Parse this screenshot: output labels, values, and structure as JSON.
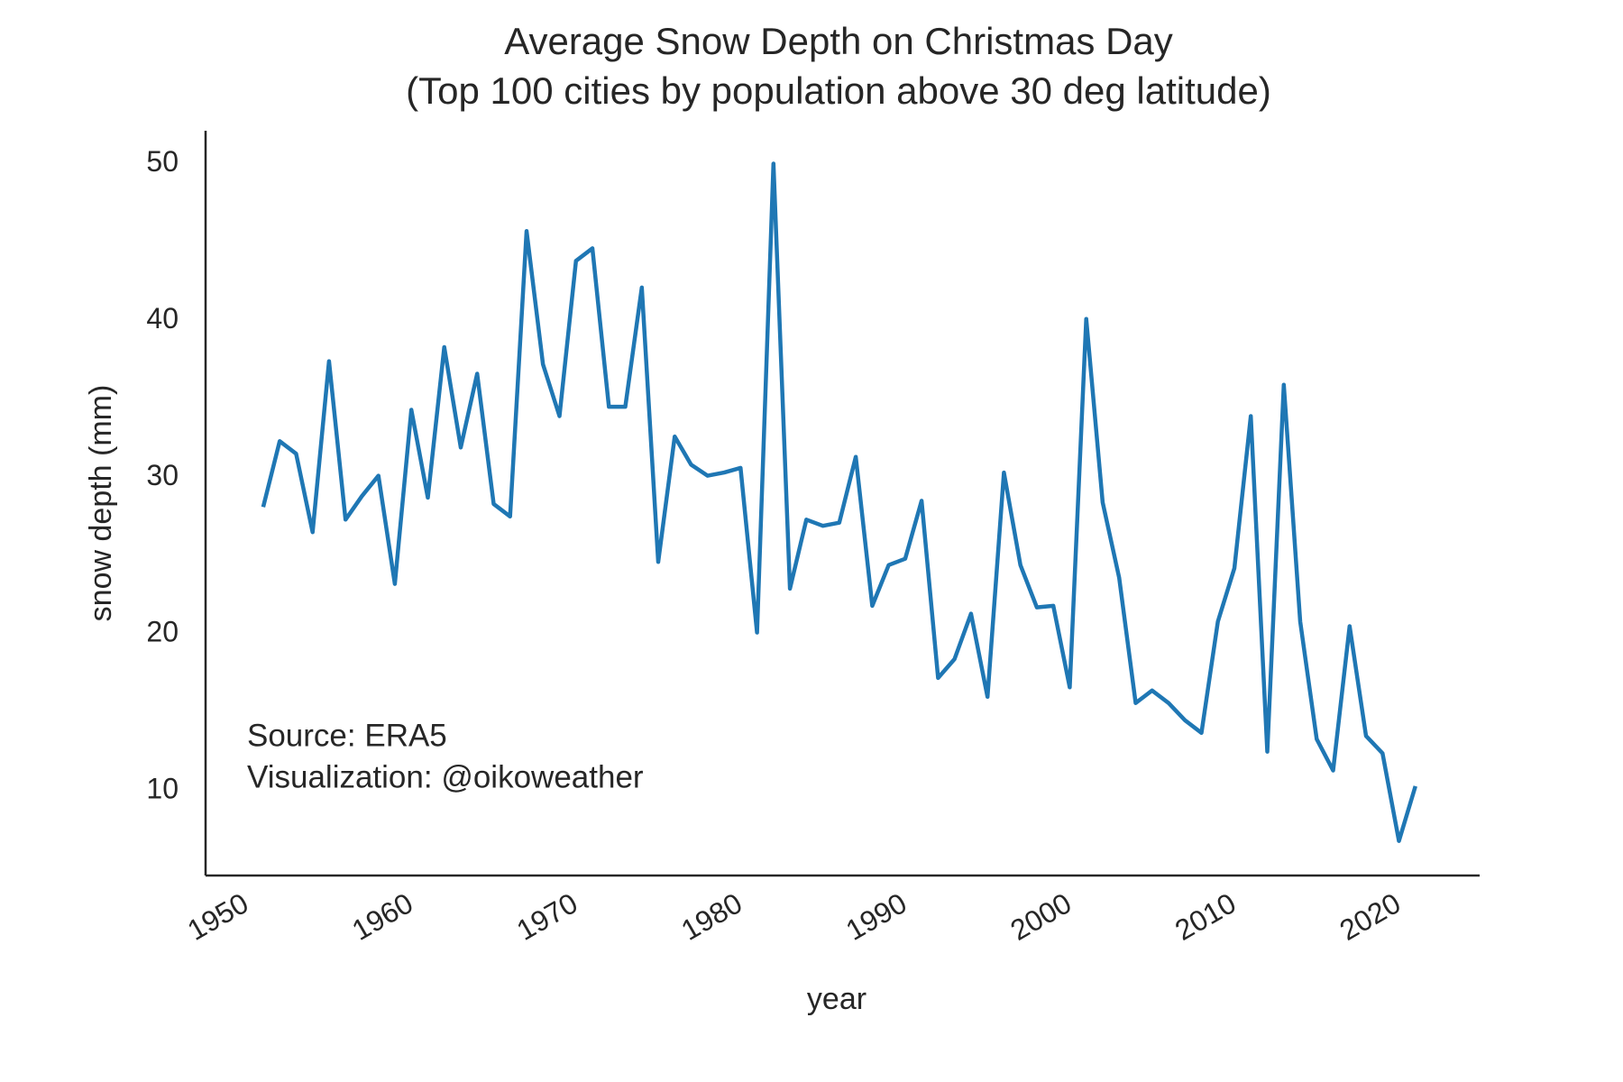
{
  "chart_data": {
    "type": "line",
    "title": [
      "Average Snow Depth on Christmas Day",
      "(Top 100 cities by population above 30 deg latitude)"
    ],
    "x_label": "year",
    "y_label": "snow depth (mm)",
    "annotation": [
      "Source: ERA5",
      "Visualization: @oikoweather"
    ],
    "x": [
      1951,
      1952,
      1953,
      1954,
      1955,
      1956,
      1957,
      1958,
      1959,
      1960,
      1961,
      1962,
      1963,
      1964,
      1965,
      1966,
      1967,
      1968,
      1969,
      1970,
      1971,
      1972,
      1973,
      1974,
      1975,
      1976,
      1977,
      1978,
      1979,
      1980,
      1981,
      1982,
      1983,
      1984,
      1985,
      1986,
      1987,
      1988,
      1989,
      1990,
      1991,
      1992,
      1993,
      1994,
      1995,
      1996,
      1997,
      1998,
      1999,
      2000,
      2001,
      2002,
      2003,
      2004,
      2005,
      2006,
      2007,
      2008,
      2009,
      2010,
      2011,
      2012,
      2013,
      2014,
      2015,
      2016,
      2017,
      2018,
      2019,
      2020,
      2021
    ],
    "series": [
      {
        "name": "snow depth",
        "color": "#1f77b4",
        "values": [
          28.1,
          32.3,
          31.5,
          26.5,
          37.4,
          27.3,
          28.8,
          30.1,
          23.2,
          34.3,
          28.7,
          38.3,
          31.9,
          36.6,
          28.3,
          27.5,
          45.7,
          37.2,
          33.9,
          43.8,
          44.6,
          34.5,
          34.5,
          42.1,
          24.6,
          32.6,
          30.8,
          30.1,
          30.3,
          30.6,
          20.1,
          50.0,
          22.9,
          27.3,
          26.9,
          27.1,
          31.3,
          21.8,
          24.4,
          24.8,
          28.5,
          17.2,
          18.4,
          21.3,
          16.0,
          30.3,
          24.4,
          21.7,
          21.8,
          16.6,
          40.1,
          28.4,
          23.6,
          15.6,
          16.4,
          15.6,
          14.5,
          13.7,
          20.8,
          24.2,
          33.9,
          12.5,
          35.9,
          20.8,
          13.3,
          11.3,
          20.5,
          13.5,
          12.4,
          6.8,
          10.3
        ]
      }
    ],
    "xlim": [
      1947.5,
      2024.9
    ],
    "ylim": [
      4.6,
      52.1
    ],
    "xticks": [
      1950,
      1960,
      1970,
      1980,
      1990,
      2000,
      2010,
      2020
    ],
    "yticks": [
      10,
      20,
      30,
      40,
      50
    ],
    "grid": false
  }
}
